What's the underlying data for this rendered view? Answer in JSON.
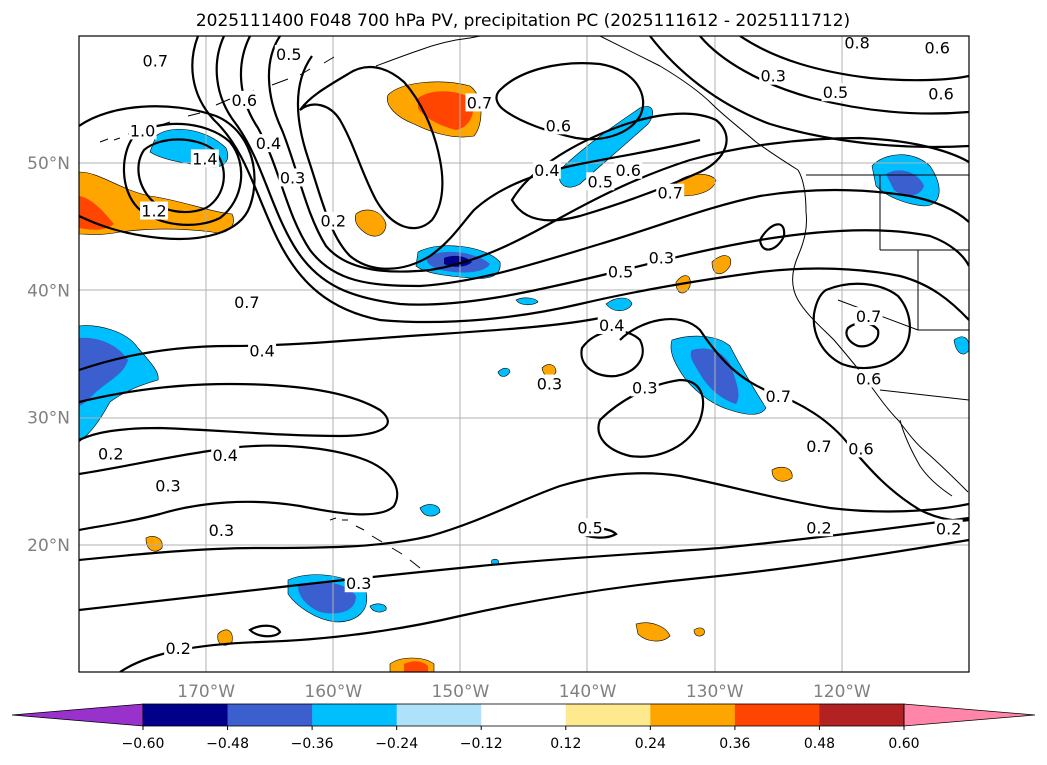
{
  "title": "2025111400 F048 700 hPa PV, precipitation PC (2025111612 - 2025111712)",
  "map": {
    "lon_range": [
      -180,
      -110
    ],
    "lat_range": [
      10,
      60
    ],
    "lon_ticks": [
      {
        "value": -170,
        "label": "170°W"
      },
      {
        "value": -160,
        "label": "160°W"
      },
      {
        "value": -150,
        "label": "150°W"
      },
      {
        "value": -140,
        "label": "140°W"
      },
      {
        "value": -130,
        "label": "130°W"
      },
      {
        "value": -120,
        "label": "120°W"
      }
    ],
    "lat_ticks": [
      {
        "value": 50,
        "label": "50°N"
      },
      {
        "value": 40,
        "label": "40°N"
      },
      {
        "value": 30,
        "label": "30°N"
      },
      {
        "value": 20,
        "label": "20°N"
      }
    ],
    "contour_labels": [
      {
        "text": "0.5",
        "lon": -163.5,
        "lat": 58.5
      },
      {
        "text": "0.7",
        "lon": -174.0,
        "lat": 58.0
      },
      {
        "text": "0.8",
        "lon": -118.8,
        "lat": 59.4
      },
      {
        "text": "0.6",
        "lon": -112.5,
        "lat": 59.0
      },
      {
        "text": "0.3",
        "lon": -125.4,
        "lat": 56.8
      },
      {
        "text": "0.5",
        "lon": -120.5,
        "lat": 55.5
      },
      {
        "text": "0.6",
        "lon": -112.2,
        "lat": 55.4
      },
      {
        "text": "0.6",
        "lon": -167.0,
        "lat": 54.9
      },
      {
        "text": "0.7",
        "lon": -148.5,
        "lat": 54.7
      },
      {
        "text": "0.6",
        "lon": -142.3,
        "lat": 52.9
      },
      {
        "text": "1.0",
        "lon": -175.0,
        "lat": 52.5
      },
      {
        "text": "0.4",
        "lon": -165.1,
        "lat": 51.5
      },
      {
        "text": "1.4",
        "lon": -170.1,
        "lat": 50.3
      },
      {
        "text": "0.4",
        "lon": -143.2,
        "lat": 49.4
      },
      {
        "text": "0.6",
        "lon": -136.8,
        "lat": 49.4
      },
      {
        "text": "0.3",
        "lon": -163.2,
        "lat": 48.8
      },
      {
        "text": "0.5",
        "lon": -139.0,
        "lat": 48.5
      },
      {
        "text": "0.7",
        "lon": -133.5,
        "lat": 47.6
      },
      {
        "text": "1.2",
        "lon": -174.1,
        "lat": 46.2
      },
      {
        "text": "0.2",
        "lon": -160.0,
        "lat": 45.4
      },
      {
        "text": "0.3",
        "lon": -134.2,
        "lat": 42.5
      },
      {
        "text": "0.5",
        "lon": -137.4,
        "lat": 41.4
      },
      {
        "text": "0.7",
        "lon": -166.8,
        "lat": 39.0
      },
      {
        "text": "0.7",
        "lon": -117.9,
        "lat": 37.9
      },
      {
        "text": "0.4",
        "lon": -138.1,
        "lat": 37.2
      },
      {
        "text": "0.4",
        "lon": -165.6,
        "lat": 35.2
      },
      {
        "text": "0.6",
        "lon": -117.9,
        "lat": 33.0
      },
      {
        "text": "0.3",
        "lon": -143.0,
        "lat": 32.6
      },
      {
        "text": "0.3",
        "lon": -135.5,
        "lat": 32.3
      },
      {
        "text": "0.7",
        "lon": -125.0,
        "lat": 31.6
      },
      {
        "text": "0.7",
        "lon": -121.8,
        "lat": 27.7
      },
      {
        "text": "0.6",
        "lon": -118.5,
        "lat": 27.5
      },
      {
        "text": "0.2",
        "lon": -177.5,
        "lat": 27.1
      },
      {
        "text": "0.4",
        "lon": -168.5,
        "lat": 27.0
      },
      {
        "text": "0.3",
        "lon": -173.0,
        "lat": 24.6
      },
      {
        "text": "0.3",
        "lon": -168.8,
        "lat": 21.1
      },
      {
        "text": "0.5",
        "lon": -139.8,
        "lat": 21.3
      },
      {
        "text": "0.2",
        "lon": -121.8,
        "lat": 21.3
      },
      {
        "text": "0.2",
        "lon": -111.6,
        "lat": 21.2
      },
      {
        "text": "0.3",
        "lon": -158.0,
        "lat": 16.9
      },
      {
        "text": "0.2",
        "lon": -172.2,
        "lat": 11.8
      }
    ]
  },
  "colorbar": {
    "levels": [
      -0.6,
      -0.48,
      -0.36,
      -0.24,
      -0.12,
      0.12,
      0.24,
      0.36,
      0.48,
      0.6
    ],
    "tick_labels": [
      "−0.60",
      "−0.48",
      "−0.36",
      "−0.24",
      "−0.12",
      "0.12",
      "0.24",
      "0.36",
      "0.48",
      "0.60"
    ],
    "colors": [
      "#9932cc",
      "#00008b",
      "#3b5fcf",
      "#00bfff",
      "#aee2fa",
      "#ffffff",
      "#ffe98f",
      "#ffa500",
      "#ff4500",
      "#b22222",
      "#ff86a8"
    ]
  },
  "colors": {
    "contour": "#000000",
    "gridline": "#b0b0b0",
    "tick_text": "#808080"
  }
}
